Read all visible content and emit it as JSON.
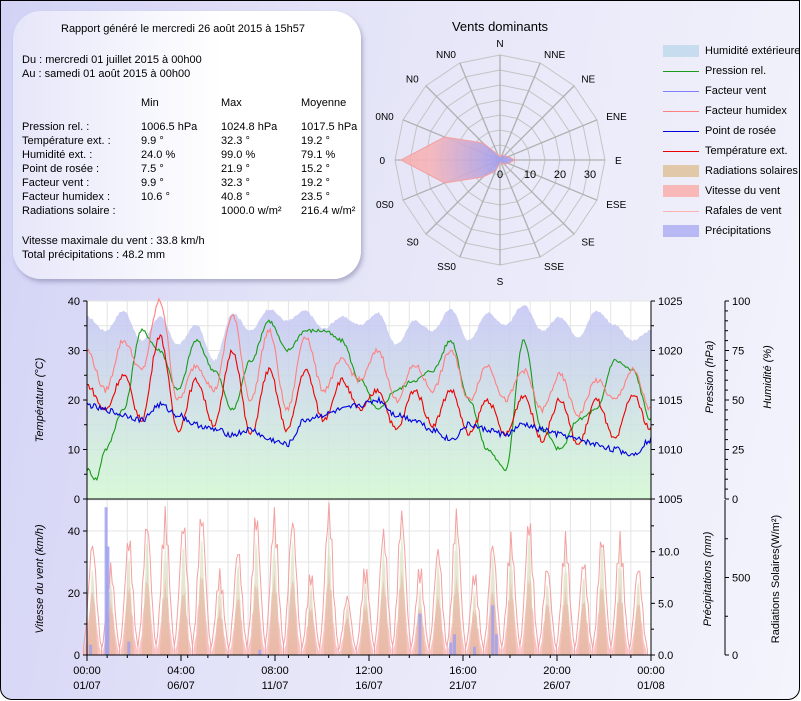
{
  "report": {
    "generated": "Rapport généré le mercredi 26 août 2015 à 15h57",
    "from": "Du : mercredi 01 juillet 2015 à 00h00",
    "to": "Au : samedi 01 août 2015 à 00h00",
    "columns": [
      "Min",
      "Max",
      "Moyenne"
    ],
    "rows": [
      {
        "label": "Pression rel. :",
        "min": "1006.5 hPa",
        "max": "1024.8 hPa",
        "avg": "1017.5 hPa"
      },
      {
        "label": "Température ext. :",
        "min": "9.9 °",
        "max": "32.3 °",
        "avg": "19.2 °"
      },
      {
        "label": "Humidité ext. :",
        "min": "24.0 %",
        "max": "99.0 %",
        "avg": "79.1 %"
      },
      {
        "label": "Point de rosée :",
        "min": "7.5 °",
        "max": "21.9 °",
        "avg": "15.2 °"
      },
      {
        "label": "Facteur vent :",
        "min": "9.9 °",
        "max": "32.3 °",
        "avg": "19.2 °"
      },
      {
        "label": "Facteur humidex :",
        "min": "10.6 °",
        "max": "40.8 °",
        "avg": "23.5 °"
      },
      {
        "label": "Radiations solaire :",
        "min": "",
        "max": "1000.0 w/m²",
        "avg": "216.4 w/m²"
      }
    ],
    "max_wind": "Vitesse maximale du vent : 33.8 km/h",
    "total_rain": "Total précipitations : 48.2 mm"
  },
  "legend": [
    {
      "label": "Humidité extérieure",
      "kind": "area",
      "color": "#c8dcf0"
    },
    {
      "label": "Pression rel.",
      "kind": "line",
      "color": "#1a9a1a"
    },
    {
      "label": "Facteur vent",
      "kind": "line",
      "color": "#8080ff"
    },
    {
      "label": "Facteur humidex",
      "kind": "line",
      "color": "#ff8080"
    },
    {
      "label": "Point de rosée",
      "kind": "line",
      "color": "#0000dd"
    },
    {
      "label": "Température ext.",
      "kind": "line",
      "color": "#ee0000"
    },
    {
      "label": "Radiations solaires",
      "kind": "area",
      "color": "#e0c8a8"
    },
    {
      "label": "Vitesse du vent",
      "kind": "area",
      "color": "#f8b8b8"
    },
    {
      "label": "Rafales de vent",
      "kind": "line",
      "color": "#ffb0b0"
    },
    {
      "label": "Précipitations",
      "kind": "area",
      "color": "#b8b8f4"
    }
  ],
  "chart_data": [
    {
      "type": "radar",
      "title": "Vents dominants",
      "directions": [
        "N",
        "NNE",
        "NE",
        "ENE",
        "E",
        "ESE",
        "SE",
        "SSE",
        "S",
        "SS0",
        "S0",
        "0S0",
        "0",
        "0N0",
        "N0",
        "NN0"
      ],
      "radial_ticks": [
        "0",
        "10",
        "20",
        "30"
      ],
      "rlim": [
        0,
        35
      ],
      "values": [
        1,
        2,
        2,
        3,
        5,
        3,
        2,
        1,
        1,
        4,
        8,
        20,
        33,
        20,
        8,
        2
      ]
    },
    {
      "type": "line",
      "title": "",
      "x_ticks": [
        [
          "00:00",
          "01/07"
        ],
        [
          "04:00",
          "06/07"
        ],
        [
          "08:00",
          "11/07"
        ],
        [
          "12:00",
          "16/07"
        ],
        [
          "16:00",
          "21/07"
        ],
        [
          "20:00",
          "26/07"
        ],
        [
          "00:00",
          "01/08"
        ]
      ],
      "xlim_days": [
        0,
        31
      ],
      "ylabel": "Température (°C)",
      "ylim": [
        0,
        40
      ],
      "yticks": [
        "0",
        "10",
        "20",
        "30",
        "40"
      ],
      "y2label": "Pression (hPa)",
      "y2lim": [
        1005,
        1025
      ],
      "y2ticks": [
        "1005",
        "1010",
        "1015",
        "1020",
        "1025"
      ],
      "y3label": "Humidité (%)",
      "y3lim": [
        0,
        100
      ],
      "y3ticks": [
        "0",
        "25",
        "50",
        "75",
        "100"
      ],
      "series": [
        {
          "name": "Humidité extérieure",
          "axis": "y3",
          "x_days": [
            0,
            1,
            2,
            3,
            4,
            5,
            6,
            7,
            8,
            9,
            10,
            11,
            12,
            13,
            14,
            15,
            16,
            17,
            18,
            19,
            20,
            21,
            22,
            23,
            24,
            25,
            26,
            27,
            28,
            29,
            30,
            31
          ],
          "values": [
            92,
            85,
            95,
            80,
            92,
            78,
            88,
            70,
            94,
            85,
            96,
            90,
            95,
            86,
            92,
            88,
            94,
            78,
            90,
            85,
            96,
            80,
            94,
            88,
            98,
            85,
            92,
            82,
            95,
            88,
            80,
            85
          ]
        },
        {
          "name": "Pression rel.",
          "axis": "y2",
          "x_days": [
            0,
            0.5,
            1,
            2,
            3,
            4,
            5,
            6,
            7,
            8,
            9,
            10,
            11,
            12,
            13,
            14,
            15,
            16,
            17,
            18,
            19,
            20,
            21,
            22,
            23,
            24,
            25,
            26,
            27,
            28,
            29,
            30,
            31
          ],
          "values": [
            1008,
            1007,
            1010,
            1014,
            1022,
            1020,
            1016,
            1021,
            1018,
            1014,
            1019,
            1023,
            1020,
            1022,
            1022,
            1021,
            1017,
            1014,
            1016,
            1017,
            1018,
            1021,
            1015,
            1010,
            1008,
            1021,
            1012,
            1010,
            1013,
            1014,
            1019,
            1018,
            1013
          ]
        },
        {
          "name": "Facteur humidex",
          "axis": "y",
          "x_days": [
            0,
            1,
            2,
            3,
            4,
            5,
            6,
            7,
            8,
            9,
            10,
            11,
            12,
            13,
            14,
            15,
            16,
            17,
            18,
            19,
            20,
            21,
            22,
            23,
            24,
            25,
            26,
            27,
            28,
            29,
            30,
            31
          ],
          "values": [
            30,
            22,
            32,
            26,
            40,
            20,
            27,
            22,
            37,
            20,
            34,
            18,
            33,
            22,
            28,
            24,
            30,
            20,
            27,
            22,
            30,
            20,
            27,
            20,
            26,
            18,
            25,
            17,
            24,
            20,
            26,
            18
          ]
        },
        {
          "name": "Température ext.",
          "axis": "y",
          "x_days": [
            0,
            1,
            2,
            3,
            4,
            5,
            6,
            7,
            8,
            9,
            10,
            11,
            12,
            13,
            14,
            15,
            16,
            17,
            18,
            19,
            20,
            21,
            22,
            23,
            24,
            25,
            26,
            27,
            28,
            29,
            30,
            31
          ],
          "values": [
            23,
            18,
            25,
            16,
            33,
            14,
            24,
            15,
            30,
            13,
            26,
            14,
            26,
            16,
            24,
            18,
            22,
            14,
            22,
            15,
            22,
            13,
            20,
            13,
            21,
            12,
            20,
            11,
            20,
            12,
            21,
            14
          ]
        },
        {
          "name": "Point de rosée",
          "axis": "y",
          "x_days": [
            0,
            1,
            2,
            3,
            4,
            5,
            6,
            7,
            8,
            9,
            10,
            11,
            12,
            13,
            14,
            15,
            16,
            17,
            18,
            19,
            20,
            21,
            22,
            23,
            24,
            25,
            26,
            27,
            28,
            29,
            30,
            31
          ],
          "values": [
            19,
            18,
            17,
            16,
            19,
            17,
            15,
            14,
            13,
            14,
            12,
            11,
            16,
            17,
            18,
            19,
            20,
            17,
            16,
            14,
            12,
            15,
            14,
            13,
            15,
            14,
            13,
            12,
            11,
            10,
            9,
            12
          ]
        }
      ]
    },
    {
      "type": "area",
      "title": "",
      "ylabel": "Vitesse du vent (km/h)",
      "ylim": [
        0,
        50
      ],
      "yticks": [
        "0",
        "20",
        "40"
      ],
      "y2label": "Précipitations (mm)",
      "y2lim": [
        0,
        15
      ],
      "y2ticks": [
        "0.0",
        "5.0",
        "10.0"
      ],
      "y3label": "Radiations Solaires(W/m²)",
      "y3lim": [
        0,
        1000
      ],
      "y3ticks": [
        "0",
        "500"
      ],
      "daily_peak_days": [
        0.3,
        1.3,
        2.3,
        3.3,
        4.3,
        5.3,
        6.3,
        7.3,
        8.3,
        9.3,
        10.3,
        11.3,
        12.3,
        13.3,
        14.3,
        15.3,
        16.3,
        17.3,
        18.3,
        19.3,
        20.3,
        21.3,
        22.3,
        23.3,
        24.3,
        25.3,
        26.3,
        27.3,
        28.3,
        29.3,
        30.3
      ],
      "series": [
        {
          "name": "Rafales de vent",
          "axis": "y",
          "values": [
            38,
            30,
            40,
            45,
            48,
            45,
            48,
            28,
            36,
            48,
            48,
            46,
            28,
            50,
            20,
            30,
            42,
            48,
            30,
            36,
            48,
            28,
            38,
            40,
            46,
            30,
            40,
            32,
            40,
            40,
            30
          ]
        },
        {
          "name": "Vitesse du vent",
          "axis": "y",
          "values": [
            22,
            18,
            24,
            26,
            25,
            22,
            28,
            16,
            20,
            25,
            27,
            26,
            17,
            28,
            13,
            18,
            25,
            28,
            17,
            20,
            26,
            16,
            22,
            24,
            27,
            18,
            22,
            19,
            24,
            23,
            18
          ]
        },
        {
          "name": "Radiations solaires",
          "axis": "y3",
          "values": [
            600,
            550,
            700,
            800,
            820,
            780,
            830,
            520,
            640,
            820,
            840,
            800,
            500,
            850,
            360,
            560,
            760,
            880,
            480,
            660,
            900,
            460,
            700,
            740,
            860,
            500,
            720,
            560,
            780,
            760,
            520
          ]
        },
        {
          "name": "Précipitations",
          "axis": "y2",
          "points": [
            [
              0.2,
              1.0
            ],
            [
              1.05,
              14.3
            ],
            [
              1.15,
              10.5
            ],
            [
              2.3,
              1.3
            ],
            [
              9.5,
              0.5
            ],
            [
              18.3,
              4.0
            ],
            [
              20.0,
              1.2
            ],
            [
              20.2,
              2.0
            ],
            [
              21.3,
              0.8
            ],
            [
              22.3,
              4.8
            ],
            [
              22.5,
              2.0
            ]
          ]
        }
      ]
    }
  ]
}
